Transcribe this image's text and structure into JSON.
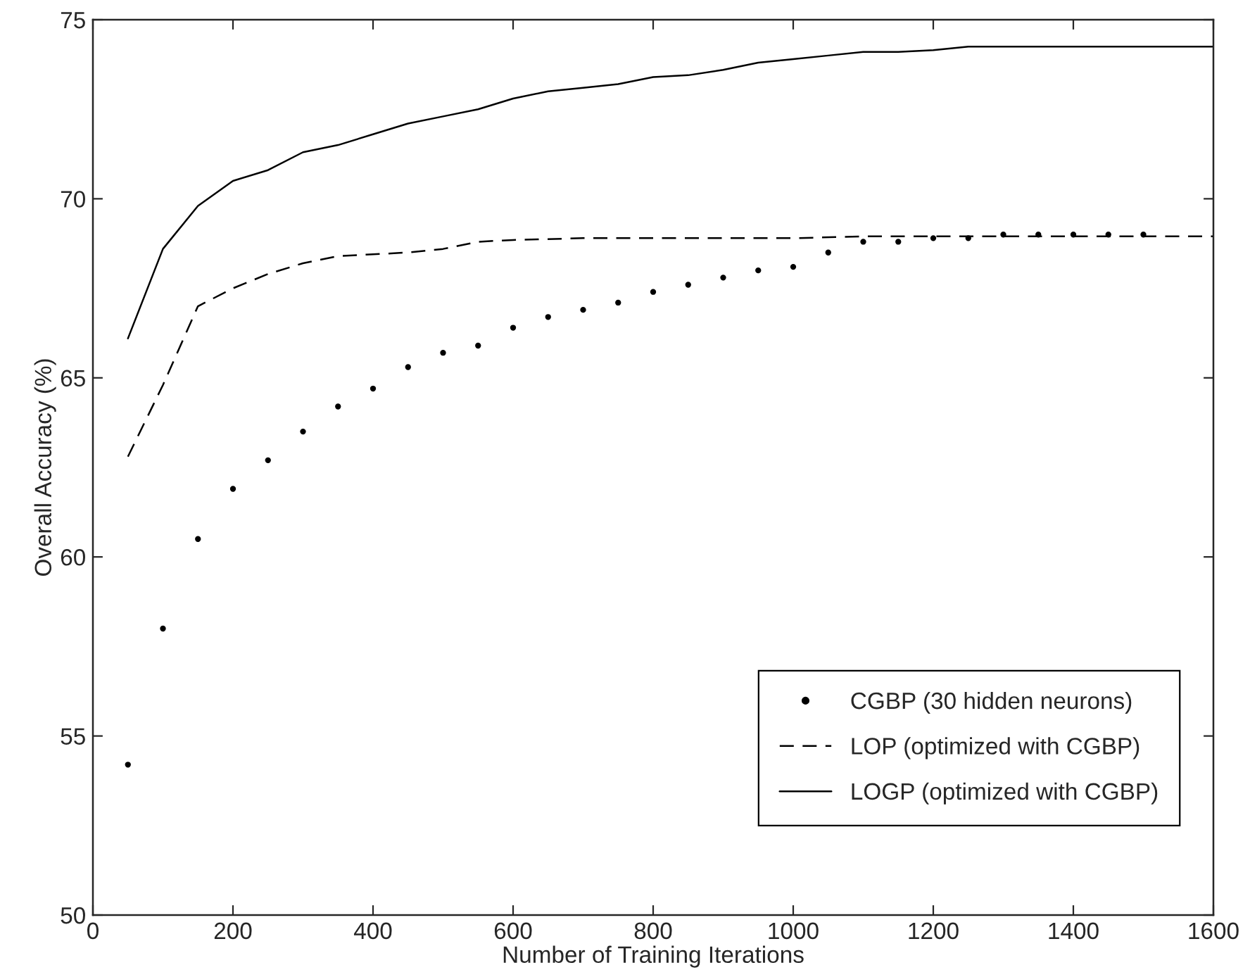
{
  "chart_data": {
    "type": "line",
    "xlabel": "Number of Training Iterations",
    "ylabel": "Overall Accuracy (%)",
    "xlim": [
      0,
      1600
    ],
    "xticks": [
      0,
      200,
      400,
      600,
      800,
      1000,
      1200,
      1400,
      1600
    ],
    "ylim": [
      50,
      75
    ],
    "yticks": [
      50,
      55,
      60,
      65,
      70,
      75
    ],
    "grid": false,
    "legend": "bottom right",
    "series": [
      {
        "name": "CGBP (30 hidden neurons)",
        "type": "scatter",
        "color": "#000000",
        "marker": "circle",
        "x": [
          50,
          100,
          150,
          200,
          250,
          300,
          350,
          400,
          450,
          500,
          550,
          600,
          650,
          700,
          750,
          800,
          850,
          900,
          950,
          1000,
          1050,
          1100,
          1150,
          1200,
          1250,
          1300,
          1350,
          1400,
          1450,
          1500
        ],
        "values": [
          54.2,
          58.0,
          60.5,
          61.9,
          62.7,
          63.5,
          64.2,
          64.7,
          65.3,
          65.7,
          65.9,
          66.4,
          66.7,
          66.9,
          67.1,
          67.4,
          67.6,
          67.8,
          68.0,
          68.1,
          68.5,
          68.8,
          68.8,
          68.9,
          68.9,
          69.0,
          69.0,
          69.0,
          69.0,
          69.0
        ]
      },
      {
        "name": "LOP (optimized with CGBP)",
        "color": "#000000",
        "line_style": "dashed",
        "x": [
          50,
          100,
          150,
          200,
          250,
          300,
          350,
          400,
          450,
          500,
          550,
          600,
          700,
          800,
          900,
          1000,
          1100,
          1200,
          1300,
          1400,
          1500,
          1600
        ],
        "values": [
          62.8,
          64.8,
          67.0,
          67.5,
          67.9,
          68.2,
          68.4,
          68.45,
          68.5,
          68.6,
          68.8,
          68.85,
          68.9,
          68.9,
          68.9,
          68.9,
          68.95,
          68.95,
          68.95,
          68.95,
          68.95,
          68.95
        ]
      },
      {
        "name": "LOGP (optimized with CGBP)",
        "color": "#000000",
        "line_style": "solid",
        "x": [
          50,
          100,
          150,
          200,
          250,
          300,
          350,
          400,
          450,
          500,
          550,
          600,
          650,
          700,
          750,
          800,
          850,
          900,
          950,
          1000,
          1050,
          1100,
          1150,
          1200,
          1250,
          1300,
          1400,
          1500,
          1600
        ],
        "values": [
          66.1,
          68.6,
          69.8,
          70.5,
          70.8,
          71.3,
          71.5,
          71.8,
          72.1,
          72.3,
          72.5,
          72.8,
          73.0,
          73.1,
          73.2,
          73.4,
          73.45,
          73.6,
          73.8,
          73.9,
          74.0,
          74.1,
          74.1,
          74.15,
          74.25,
          74.25,
          74.25,
          74.25,
          74.25
        ]
      }
    ]
  }
}
